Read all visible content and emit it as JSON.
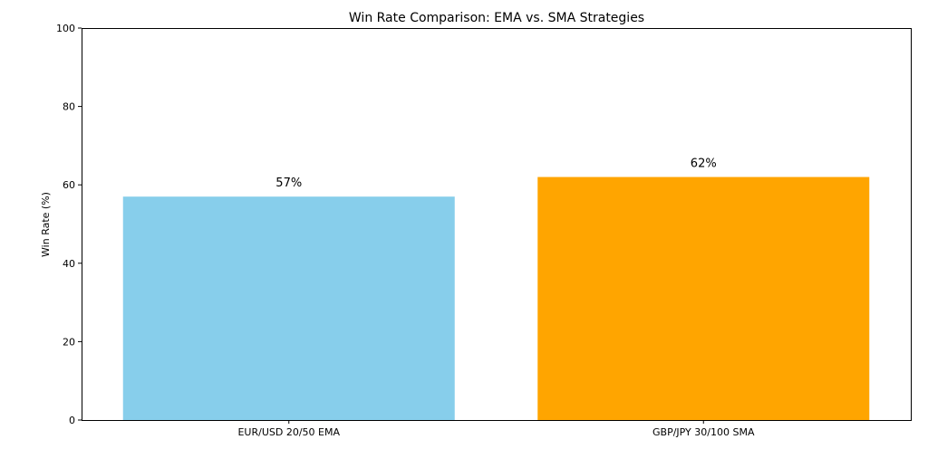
{
  "chart_data": {
    "type": "bar",
    "title": "Win Rate Comparison: EMA vs. SMA Strategies",
    "xlabel": "",
    "ylabel": "Win Rate (%)",
    "ylim": [
      0,
      100
    ],
    "yticks": [
      0,
      20,
      40,
      60,
      80,
      100
    ],
    "categories": [
      "EUR/USD 20/50 EMA",
      "GBP/JPY 30/100 SMA"
    ],
    "values": [
      57,
      62
    ],
    "data_labels": [
      "57%",
      "62%"
    ],
    "colors": [
      "#87ceeb",
      "#ffa500"
    ],
    "grid": false,
    "legend": "none"
  }
}
